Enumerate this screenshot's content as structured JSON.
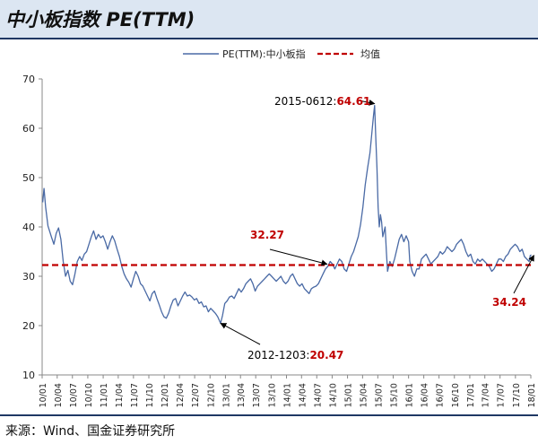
{
  "header": {
    "title": "中小板指数 PE(TTM)"
  },
  "footer": {
    "source": "来源：Wind、国金证券研究所"
  },
  "chart_data": {
    "type": "line",
    "title": "中小板指数 PE(TTM)",
    "ylim": [
      10,
      70
    ],
    "yticks": [
      10,
      20,
      30,
      40,
      50,
      60,
      70
    ],
    "xlim": [
      "2010-01",
      "2018-01"
    ],
    "xtick_labels": [
      "10/01",
      "10/04",
      "10/07",
      "10/10",
      "11/01",
      "11/04",
      "11/07",
      "11/10",
      "12/01",
      "12/04",
      "12/07",
      "12/10",
      "13/01",
      "13/04",
      "13/07",
      "13/10",
      "14/01",
      "14/04",
      "14/07",
      "14/10",
      "15/01",
      "15/04",
      "15/07",
      "15/10",
      "16/01",
      "16/04",
      "16/07",
      "16/10",
      "17/01",
      "17/04",
      "17/07",
      "17/10",
      "18/01"
    ],
    "legend_position": "top",
    "series": [
      {
        "name": "PE(TTM):中小板指",
        "color": "#4a6aa5",
        "style": "solid",
        "points": [
          [
            "2010-01-04",
            45.0
          ],
          [
            "2010-01-12",
            47.8
          ],
          [
            "2010-01-22",
            44.0
          ],
          [
            "2010-02-05",
            40.2
          ],
          [
            "2010-02-25",
            38.0
          ],
          [
            "2010-03-12",
            36.5
          ],
          [
            "2010-03-26",
            38.7
          ],
          [
            "2010-04-09",
            39.8
          ],
          [
            "2010-04-23",
            37.5
          ],
          [
            "2010-05-07",
            33.0
          ],
          [
            "2010-05-21",
            30.0
          ],
          [
            "2010-06-04",
            31.2
          ],
          [
            "2010-06-18",
            29.0
          ],
          [
            "2010-07-02",
            28.3
          ],
          [
            "2010-07-16",
            30.5
          ],
          [
            "2010-07-30",
            33.0
          ],
          [
            "2010-08-13",
            34.0
          ],
          [
            "2010-08-27",
            33.2
          ],
          [
            "2010-09-10",
            34.5
          ],
          [
            "2010-09-24",
            35.0
          ],
          [
            "2010-10-08",
            36.5
          ],
          [
            "2010-10-22",
            38.0
          ],
          [
            "2010-11-05",
            39.2
          ],
          [
            "2010-11-19",
            37.5
          ],
          [
            "2010-12-03",
            38.5
          ],
          [
            "2010-12-17",
            37.8
          ],
          [
            "2010-12-31",
            38.2
          ],
          [
            "2011-01-14",
            37.0
          ],
          [
            "2011-01-28",
            35.5
          ],
          [
            "2011-02-11",
            37.0
          ],
          [
            "2011-02-25",
            38.2
          ],
          [
            "2011-03-11",
            37.2
          ],
          [
            "2011-03-25",
            35.5
          ],
          [
            "2011-04-08",
            34.0
          ],
          [
            "2011-04-22",
            32.0
          ],
          [
            "2011-05-06",
            30.5
          ],
          [
            "2011-05-20",
            29.5
          ],
          [
            "2011-06-03",
            28.8
          ],
          [
            "2011-06-17",
            27.8
          ],
          [
            "2011-07-01",
            29.5
          ],
          [
            "2011-07-15",
            31.0
          ],
          [
            "2011-07-29",
            30.0
          ],
          [
            "2011-08-12",
            28.5
          ],
          [
            "2011-08-26",
            28.0
          ],
          [
            "2011-09-09",
            27.0
          ],
          [
            "2011-09-23",
            26.0
          ],
          [
            "2011-10-07",
            25.0
          ],
          [
            "2011-10-21",
            26.5
          ],
          [
            "2011-11-04",
            27.0
          ],
          [
            "2011-11-18",
            25.5
          ],
          [
            "2011-12-02",
            24.2
          ],
          [
            "2011-12-16",
            22.8
          ],
          [
            "2011-12-30",
            21.8
          ],
          [
            "2012-01-13",
            21.5
          ],
          [
            "2012-01-27",
            22.5
          ],
          [
            "2012-02-10",
            24.0
          ],
          [
            "2012-02-24",
            25.2
          ],
          [
            "2012-03-09",
            25.5
          ],
          [
            "2012-03-23",
            24.0
          ],
          [
            "2012-04-06",
            25.0
          ],
          [
            "2012-04-20",
            26.0
          ],
          [
            "2012-05-04",
            26.8
          ],
          [
            "2012-05-18",
            26.0
          ],
          [
            "2012-06-01",
            26.2
          ],
          [
            "2012-06-15",
            25.8
          ],
          [
            "2012-06-29",
            25.2
          ],
          [
            "2012-07-13",
            25.5
          ],
          [
            "2012-07-27",
            24.5
          ],
          [
            "2012-08-10",
            24.8
          ],
          [
            "2012-08-24",
            23.8
          ],
          [
            "2012-09-07",
            24.0
          ],
          [
            "2012-09-21",
            22.8
          ],
          [
            "2012-10-05",
            23.5
          ],
          [
            "2012-10-19",
            23.0
          ],
          [
            "2012-11-02",
            22.5
          ],
          [
            "2012-11-16",
            21.8
          ],
          [
            "2012-12-03",
            20.47
          ],
          [
            "2012-12-14",
            22.0
          ],
          [
            "2012-12-28",
            24.5
          ],
          [
            "2013-01-11",
            25.0
          ],
          [
            "2013-01-25",
            25.8
          ],
          [
            "2013-02-08",
            26.0
          ],
          [
            "2013-02-22",
            25.5
          ],
          [
            "2013-03-08",
            26.5
          ],
          [
            "2013-03-22",
            27.5
          ],
          [
            "2013-04-05",
            26.8
          ],
          [
            "2013-04-19",
            27.5
          ],
          [
            "2013-05-03",
            28.5
          ],
          [
            "2013-05-17",
            29.0
          ],
          [
            "2013-05-31",
            29.5
          ],
          [
            "2013-06-14",
            28.5
          ],
          [
            "2013-06-28",
            27.0
          ],
          [
            "2013-07-12",
            28.0
          ],
          [
            "2013-07-26",
            28.5
          ],
          [
            "2013-08-09",
            29.0
          ],
          [
            "2013-08-23",
            29.5
          ],
          [
            "2013-09-06",
            30.0
          ],
          [
            "2013-09-20",
            30.5
          ],
          [
            "2013-10-04",
            30.0
          ],
          [
            "2013-10-18",
            29.5
          ],
          [
            "2013-11-01",
            29.0
          ],
          [
            "2013-11-15",
            29.5
          ],
          [
            "2013-11-29",
            30.0
          ],
          [
            "2013-12-13",
            29.0
          ],
          [
            "2013-12-27",
            28.5
          ],
          [
            "2014-01-10",
            29.0
          ],
          [
            "2014-01-24",
            30.0
          ],
          [
            "2014-02-07",
            30.5
          ],
          [
            "2014-02-21",
            29.5
          ],
          [
            "2014-03-07",
            28.5
          ],
          [
            "2014-03-21",
            28.0
          ],
          [
            "2014-04-04",
            28.5
          ],
          [
            "2014-04-18",
            27.5
          ],
          [
            "2014-05-02",
            27.0
          ],
          [
            "2014-05-16",
            26.5
          ],
          [
            "2014-05-30",
            27.5
          ],
          [
            "2014-06-13",
            27.8
          ],
          [
            "2014-06-27",
            28.0
          ],
          [
            "2014-07-11",
            28.5
          ],
          [
            "2014-07-25",
            29.5
          ],
          [
            "2014-08-08",
            30.5
          ],
          [
            "2014-08-22",
            31.5
          ],
          [
            "2014-09-05",
            32.0
          ],
          [
            "2014-09-19",
            33.0
          ],
          [
            "2014-10-03",
            32.5
          ],
          [
            "2014-10-17",
            31.5
          ],
          [
            "2014-10-31",
            32.5
          ],
          [
            "2014-11-14",
            33.5
          ],
          [
            "2014-11-28",
            33.0
          ],
          [
            "2014-12-12",
            31.5
          ],
          [
            "2014-12-26",
            31.0
          ],
          [
            "2015-01-09",
            32.5
          ],
          [
            "2015-01-23",
            34.0
          ],
          [
            "2015-02-06",
            35.0
          ],
          [
            "2015-02-20",
            36.5
          ],
          [
            "2015-03-06",
            38.0
          ],
          [
            "2015-03-20",
            40.5
          ],
          [
            "2015-04-03",
            44.0
          ],
          [
            "2015-04-17",
            48.5
          ],
          [
            "2015-05-01",
            52.0
          ],
          [
            "2015-05-15",
            55.0
          ],
          [
            "2015-05-29",
            60.0
          ],
          [
            "2015-06-05",
            62.5
          ],
          [
            "2015-06-12",
            64.61
          ],
          [
            "2015-06-19",
            58.0
          ],
          [
            "2015-06-26",
            52.0
          ],
          [
            "2015-07-03",
            44.0
          ],
          [
            "2015-07-10",
            40.0
          ],
          [
            "2015-07-17",
            42.5
          ],
          [
            "2015-07-24",
            41.0
          ],
          [
            "2015-07-31",
            38.0
          ],
          [
            "2015-08-07",
            39.0
          ],
          [
            "2015-08-14",
            40.0
          ],
          [
            "2015-08-21",
            35.0
          ],
          [
            "2015-08-28",
            31.0
          ],
          [
            "2015-09-11",
            33.0
          ],
          [
            "2015-09-25",
            32.0
          ],
          [
            "2015-10-09",
            33.5
          ],
          [
            "2015-10-23",
            35.5
          ],
          [
            "2015-11-06",
            37.5
          ],
          [
            "2015-11-20",
            38.5
          ],
          [
            "2015-12-04",
            37.0
          ],
          [
            "2015-12-18",
            38.2
          ],
          [
            "2016-01-01",
            37.0
          ],
          [
            "2016-01-08",
            33.0
          ],
          [
            "2016-01-22",
            31.0
          ],
          [
            "2016-02-05",
            30.0
          ],
          [
            "2016-02-19",
            31.5
          ],
          [
            "2016-03-04",
            31.5
          ],
          [
            "2016-03-18",
            33.5
          ],
          [
            "2016-04-01",
            34.0
          ],
          [
            "2016-04-15",
            34.5
          ],
          [
            "2016-04-29",
            33.5
          ],
          [
            "2016-05-13",
            32.5
          ],
          [
            "2016-05-27",
            33.0
          ],
          [
            "2016-06-10",
            33.5
          ],
          [
            "2016-06-24",
            34.0
          ],
          [
            "2016-07-08",
            35.0
          ],
          [
            "2016-07-22",
            34.5
          ],
          [
            "2016-08-05",
            35.0
          ],
          [
            "2016-08-19",
            36.0
          ],
          [
            "2016-09-02",
            35.5
          ],
          [
            "2016-09-16",
            35.0
          ],
          [
            "2016-09-30",
            35.5
          ],
          [
            "2016-10-14",
            36.5
          ],
          [
            "2016-10-28",
            37.0
          ],
          [
            "2016-11-11",
            37.5
          ],
          [
            "2016-11-25",
            36.5
          ],
          [
            "2016-12-09",
            35.0
          ],
          [
            "2016-12-23",
            34.0
          ],
          [
            "2017-01-06",
            34.5
          ],
          [
            "2017-01-20",
            33.0
          ],
          [
            "2017-02-03",
            32.5
          ],
          [
            "2017-02-17",
            33.5
          ],
          [
            "2017-03-03",
            33.0
          ],
          [
            "2017-03-17",
            33.5
          ],
          [
            "2017-03-31",
            33.0
          ],
          [
            "2017-04-14",
            32.5
          ],
          [
            "2017-04-28",
            32.0
          ],
          [
            "2017-05-12",
            31.0
          ],
          [
            "2017-05-26",
            31.5
          ],
          [
            "2017-06-09",
            32.5
          ],
          [
            "2017-06-23",
            33.5
          ],
          [
            "2017-07-07",
            33.5
          ],
          [
            "2017-07-21",
            33.0
          ],
          [
            "2017-08-04",
            34.0
          ],
          [
            "2017-08-18",
            34.5
          ],
          [
            "2017-09-01",
            35.5
          ],
          [
            "2017-09-15",
            36.0
          ],
          [
            "2017-09-29",
            36.5
          ],
          [
            "2017-10-13",
            36.0
          ],
          [
            "2017-10-27",
            35.0
          ],
          [
            "2017-11-10",
            35.5
          ],
          [
            "2017-11-24",
            34.0
          ],
          [
            "2017-12-08",
            33.5
          ],
          [
            "2017-12-22",
            33.0
          ],
          [
            "2017-12-29",
            34.24
          ],
          [
            "2018-01-05",
            34.3
          ]
        ]
      },
      {
        "name": "均值",
        "color": "#c00000",
        "style": "dashed",
        "value": 32.27
      }
    ],
    "annotations": [
      {
        "prefix": "2015-0612:",
        "value": "64.61",
        "point": [
          "2015-06-12",
          64.61
        ]
      },
      {
        "prefix": "2012-1203:",
        "value": "20.47",
        "point": [
          "2012-12-03",
          20.47
        ]
      },
      {
        "prefix": "",
        "value": "32.27",
        "point": [
          "2014-09-01",
          32.27
        ]
      },
      {
        "prefix": "",
        "value": "34.24",
        "point": [
          "2017-12-29",
          34.24
        ]
      }
    ]
  }
}
